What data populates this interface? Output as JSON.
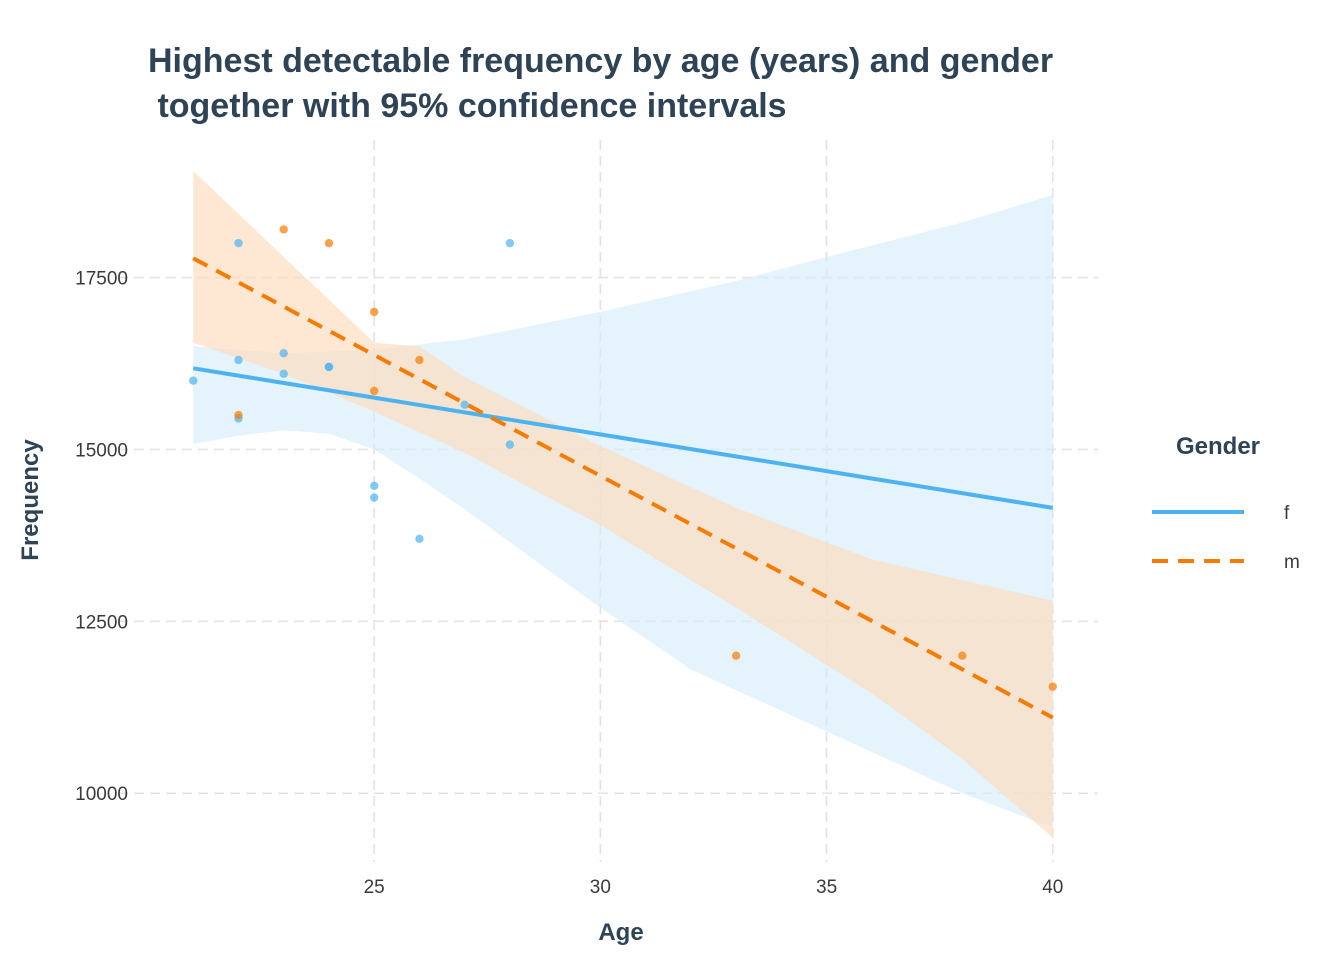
{
  "chart_data": {
    "type": "scatter",
    "title_lines": [
      "Highest detectable frequency by age (years) and gender",
      " together with 95% confidence intervals"
    ],
    "xlabel": "Age",
    "ylabel": "Frequency",
    "xlim": [
      20,
      41
    ],
    "ylim": [
      9000,
      19500
    ],
    "x_ticks": [
      25,
      30,
      35,
      40
    ],
    "y_ticks": [
      10000,
      12500,
      15000,
      17500
    ],
    "grid": true,
    "legend": {
      "title": "Gender",
      "placement": "right"
    },
    "series": [
      {
        "name": "f",
        "color": "#4db3f0",
        "band_color": "#d5ecfb",
        "line_style": "solid",
        "points": [
          {
            "x": 21,
            "y": 16000
          },
          {
            "x": 22,
            "y": 18000
          },
          {
            "x": 22,
            "y": 16300
          },
          {
            "x": 22,
            "y": 15450
          },
          {
            "x": 23,
            "y": 16400
          },
          {
            "x": 23,
            "y": 16100
          },
          {
            "x": 24,
            "y": 16200
          },
          {
            "x": 24,
            "y": 16200
          },
          {
            "x": 25,
            "y": 14470
          },
          {
            "x": 25,
            "y": 14300
          },
          {
            "x": 26,
            "y": 13700
          },
          {
            "x": 27,
            "y": 15650
          },
          {
            "x": 28,
            "y": 18000
          },
          {
            "x": 28,
            "y": 15070
          }
        ],
        "fit": {
          "x": [
            21,
            40
          ],
          "y": [
            16180,
            14150
          ]
        },
        "ci_lower": [
          {
            "x": 21,
            "y": 15080
          },
          {
            "x": 22,
            "y": 15200
          },
          {
            "x": 23,
            "y": 15280
          },
          {
            "x": 24,
            "y": 15230
          },
          {
            "x": 25,
            "y": 15000
          },
          {
            "x": 26,
            "y": 14580
          },
          {
            "x": 27,
            "y": 14130
          },
          {
            "x": 28,
            "y": 13650
          },
          {
            "x": 30,
            "y": 12700
          },
          {
            "x": 32,
            "y": 11800
          },
          {
            "x": 35,
            "y": 10900
          },
          {
            "x": 38,
            "y": 10000
          },
          {
            "x": 40,
            "y": 9500
          }
        ],
        "ci_upper": [
          {
            "x": 21,
            "y": 16500
          },
          {
            "x": 23,
            "y": 16400
          },
          {
            "x": 25,
            "y": 16450
          },
          {
            "x": 27,
            "y": 16600
          },
          {
            "x": 30,
            "y": 17000
          },
          {
            "x": 33,
            "y": 17450
          },
          {
            "x": 35,
            "y": 17800
          },
          {
            "x": 38,
            "y": 18300
          },
          {
            "x": 40,
            "y": 18700
          }
        ]
      },
      {
        "name": "m",
        "color": "#f57c00",
        "band_color": "#ffdcbc",
        "line_style": "dashed",
        "points": [
          {
            "x": 22,
            "y": 15500
          },
          {
            "x": 23,
            "y": 18200
          },
          {
            "x": 24,
            "y": 18000
          },
          {
            "x": 25,
            "y": 17000
          },
          {
            "x": 25,
            "y": 15850
          },
          {
            "x": 26,
            "y": 16300
          },
          {
            "x": 33,
            "y": 12000
          },
          {
            "x": 38,
            "y": 12000
          },
          {
            "x": 40,
            "y": 11550
          }
        ],
        "fit": {
          "x": [
            21,
            40
          ],
          "y": [
            17780,
            11100
          ]
        },
        "ci_lower": [
          {
            "x": 21,
            "y": 16550
          },
          {
            "x": 23,
            "y": 16100
          },
          {
            "x": 25,
            "y": 15550
          },
          {
            "x": 27,
            "y": 14950
          },
          {
            "x": 30,
            "y": 13900
          },
          {
            "x": 33,
            "y": 12700
          },
          {
            "x": 36,
            "y": 11450
          },
          {
            "x": 38,
            "y": 10500
          },
          {
            "x": 40,
            "y": 9350
          }
        ],
        "ci_upper": [
          {
            "x": 21,
            "y": 19050
          },
          {
            "x": 23,
            "y": 17800
          },
          {
            "x": 25,
            "y": 16550
          },
          {
            "x": 26,
            "y": 16500
          },
          {
            "x": 27,
            "y": 16050
          },
          {
            "x": 30,
            "y": 15050
          },
          {
            "x": 33,
            "y": 14150
          },
          {
            "x": 36,
            "y": 13400
          },
          {
            "x": 38,
            "y": 13100
          },
          {
            "x": 40,
            "y": 12800
          }
        ]
      }
    ]
  }
}
